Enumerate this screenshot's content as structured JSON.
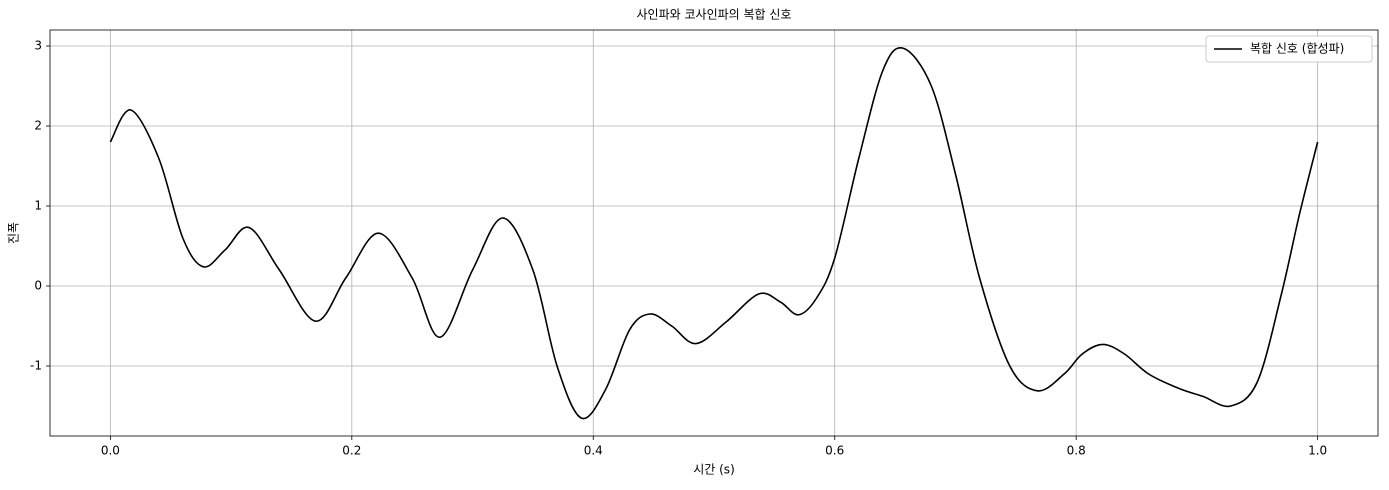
{
  "chart_data": {
    "type": "line",
    "title": "사인파와 코사인파의 복합 신호",
    "x_label": "시간 (s)",
    "y_label": "진폭",
    "x": [
      0,
      0.017,
      0.04,
      0.06,
      0.077,
      0.095,
      0.115,
      0.14,
      0.17,
      0.195,
      0.222,
      0.25,
      0.273,
      0.3,
      0.325,
      0.35,
      0.37,
      0.39,
      0.41,
      0.43,
      0.447,
      0.465,
      0.485,
      0.51,
      0.537,
      0.555,
      0.57,
      0.585,
      0.6,
      0.62,
      0.64,
      0.657,
      0.68,
      0.7,
      0.72,
      0.745,
      0.768,
      0.79,
      0.805,
      0.822,
      0.84,
      0.86,
      0.885,
      0.905,
      0.928,
      0.95,
      0.97,
      0.985,
      1.0
    ],
    "series": [
      {
        "name": "복합 신호 (합성파)",
        "color": "#000000",
        "values": [
          1.8,
          2.2,
          1.6,
          0.6,
          0.24,
          0.45,
          0.73,
          0.2,
          -0.44,
          0.1,
          0.66,
          0.1,
          -0.64,
          0.2,
          0.85,
          0.2,
          -1.0,
          -1.65,
          -1.3,
          -0.55,
          -0.35,
          -0.5,
          -0.72,
          -0.45,
          -0.1,
          -0.2,
          -0.36,
          -0.15,
          0.35,
          1.6,
          2.7,
          2.97,
          2.5,
          1.4,
          0.1,
          -1.0,
          -1.31,
          -1.1,
          -0.85,
          -0.73,
          -0.85,
          -1.1,
          -1.28,
          -1.38,
          -1.5,
          -1.2,
          -0.1,
          0.9,
          1.8
        ]
      }
    ],
    "xlim": [
      -0.05,
      1.05
    ],
    "ylim": [
      -1.875,
      3.2
    ],
    "xticks": [
      {
        "value": 0,
        "label": "0.0"
      },
      0.2,
      0.4,
      0.6,
      0.8,
      {
        "value": 1,
        "label": "1.0"
      }
    ],
    "yticks": [
      -1,
      0,
      1,
      2,
      3
    ],
    "grid": true,
    "legend": "upper right"
  }
}
